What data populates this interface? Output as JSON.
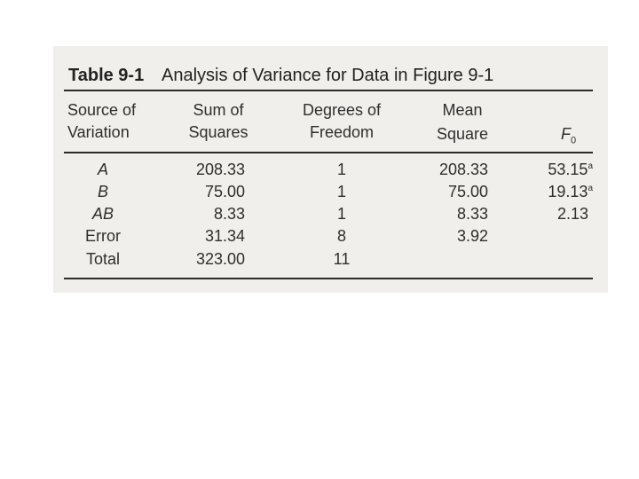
{
  "caption": {
    "number": "Table 9-1",
    "title": "Analysis of Variance for Data in Figure 9-1"
  },
  "headers": {
    "source": [
      "Source of",
      "Variation"
    ],
    "ss": [
      "Sum of",
      "Squares"
    ],
    "df": [
      "Degrees of",
      "Freedom"
    ],
    "ms": [
      "Mean",
      "Square"
    ],
    "f": {
      "main": "F",
      "sub": "0"
    }
  },
  "rows": [
    {
      "source": "A",
      "ss": "208.33",
      "df": "1",
      "ms": "208.33",
      "f": "53.15",
      "f_sup": "a"
    },
    {
      "source": "B",
      "ss": "75.00",
      "df": "1",
      "ms": "75.00",
      "f": "19.13",
      "f_sup": "a"
    },
    {
      "source": "AB",
      "ss": "8.33",
      "df": "1",
      "ms": "8.33",
      "f": "2.13",
      "f_sup": ""
    },
    {
      "source": "Error",
      "ss": "31.34",
      "df": "8",
      "ms": "3.92",
      "f": "",
      "f_sup": ""
    },
    {
      "source": "Total",
      "ss": "323.00",
      "df": "11",
      "ms": "",
      "f": "",
      "f_sup": ""
    }
  ]
}
